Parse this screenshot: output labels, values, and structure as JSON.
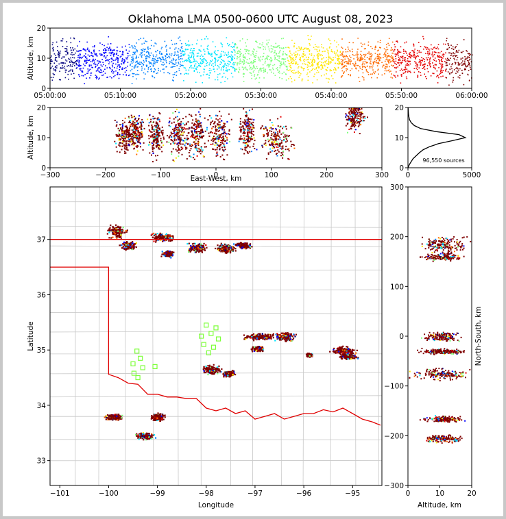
{
  "chart_data": {
    "type": "scatter",
    "title": "Oklahoma LMA 0500-0600 UTC August 08, 2023",
    "color_scale": [
      "#00007f",
      "#0000ff",
      "#0080ff",
      "#00e5ff",
      "#7dff7a",
      "#ffe600",
      "#ff6a00",
      "#e50000",
      "#7f0000"
    ],
    "panels": {
      "time_altitude": {
        "ylabel": "Altitude, km",
        "ylim": [
          0,
          20
        ],
        "yticks": [
          "0",
          "10",
          "20"
        ],
        "xticks": [
          "05:00:00",
          "05:10:00",
          "05:20:00",
          "05:30:00",
          "05:40:00",
          "05:50:00",
          "06:00:00"
        ]
      },
      "eastwest_altitude": {
        "ylabel": "Altitude, km",
        "xlabel": "East-West, km",
        "xlim": [
          -300,
          300
        ],
        "ylim": [
          0,
          20
        ],
        "xticks": [
          "−300",
          "−200",
          "−100",
          "0",
          "100",
          "200",
          "300"
        ],
        "yticks": [
          "0",
          "10",
          "20"
        ],
        "clusters": [
          {
            "x": -165,
            "alt": 11,
            "w": 22,
            "h": 4
          },
          {
            "x": -145,
            "alt": 12,
            "w": 20,
            "h": 4
          },
          {
            "x": -110,
            "alt": 11,
            "w": 18,
            "h": 5
          },
          {
            "x": -70,
            "alt": 11,
            "w": 22,
            "h": 5
          },
          {
            "x": -35,
            "alt": 11,
            "w": 25,
            "h": 5
          },
          {
            "x": 5,
            "alt": 11,
            "w": 30,
            "h": 5
          },
          {
            "x": 55,
            "alt": 12,
            "w": 20,
            "h": 5
          },
          {
            "x": 110,
            "alt": 10,
            "w": 40,
            "h": 4
          },
          {
            "x": 250,
            "alt": 17,
            "w": 25,
            "h": 3
          }
        ]
      },
      "altitude_histogram": {
        "annotation": "96,550 sources",
        "xticks": [
          "0",
          "5000"
        ],
        "yticks": [
          "0",
          "10",
          "20"
        ],
        "xlim": [
          0,
          5000
        ],
        "ylim": [
          0,
          20
        ],
        "profile": [
          [
            0,
            0
          ],
          [
            100,
            1
          ],
          [
            250,
            2
          ],
          [
            400,
            3
          ],
          [
            650,
            4
          ],
          [
            900,
            5
          ],
          [
            1200,
            6
          ],
          [
            1700,
            7
          ],
          [
            2400,
            8
          ],
          [
            3500,
            9
          ],
          [
            4500,
            10
          ],
          [
            4000,
            11
          ],
          [
            2200,
            12
          ],
          [
            1000,
            13
          ],
          [
            500,
            14
          ],
          [
            250,
            15
          ],
          [
            120,
            16
          ],
          [
            70,
            17
          ],
          [
            40,
            18
          ],
          [
            20,
            19
          ],
          [
            10,
            20
          ]
        ]
      },
      "map": {
        "xlabel": "Longitude",
        "ylabel": "Latitude",
        "xlim": [
          -101.2,
          -94.4
        ],
        "ylim": [
          32.55,
          37.95
        ],
        "xticks": [
          "−101",
          "−100",
          "−99",
          "−98",
          "−97",
          "−96",
          "−95"
        ],
        "yticks": [
          "33",
          "34",
          "35",
          "36",
          "37"
        ],
        "clusters": [
          {
            "lon": -99.85,
            "lat": 37.15,
            "rx": 0.25,
            "ry": 0.15
          },
          {
            "lon": -99.6,
            "lat": 36.9,
            "rx": 0.2,
            "ry": 0.1
          },
          {
            "lon": -98.9,
            "lat": 37.05,
            "rx": 0.3,
            "ry": 0.1
          },
          {
            "lon": -98.8,
            "lat": 36.75,
            "rx": 0.15,
            "ry": 0.07
          },
          {
            "lon": -98.2,
            "lat": 36.85,
            "rx": 0.25,
            "ry": 0.12
          },
          {
            "lon": -97.6,
            "lat": 36.85,
            "rx": 0.25,
            "ry": 0.1
          },
          {
            "lon": -97.25,
            "lat": 36.9,
            "rx": 0.2,
            "ry": 0.07
          },
          {
            "lon": -96.9,
            "lat": 35.25,
            "rx": 0.4,
            "ry": 0.07
          },
          {
            "lon": -96.4,
            "lat": 35.25,
            "rx": 0.25,
            "ry": 0.1
          },
          {
            "lon": -96.95,
            "lat": 35.03,
            "rx": 0.15,
            "ry": 0.06
          },
          {
            "lon": -95.2,
            "lat": 35.0,
            "rx": 0.3,
            "ry": 0.1
          },
          {
            "lon": -95.1,
            "lat": 34.9,
            "rx": 0.25,
            "ry": 0.07
          },
          {
            "lon": -97.9,
            "lat": 34.65,
            "rx": 0.25,
            "ry": 0.1
          },
          {
            "lon": -97.55,
            "lat": 34.58,
            "rx": 0.18,
            "ry": 0.07
          },
          {
            "lon": -99.9,
            "lat": 33.8,
            "rx": 0.22,
            "ry": 0.07
          },
          {
            "lon": -99.0,
            "lat": 33.8,
            "rx": 0.18,
            "ry": 0.09
          },
          {
            "lon": -99.25,
            "lat": 33.45,
            "rx": 0.25,
            "ry": 0.08
          },
          {
            "lon": -95.9,
            "lat": 34.92,
            "rx": 0.08,
            "ry": 0.04
          }
        ],
        "stations": [
          [
            -99.42,
            34.98
          ],
          [
            -99.35,
            34.85
          ],
          [
            -99.5,
            34.75
          ],
          [
            -99.3,
            34.68
          ],
          [
            -99.48,
            34.58
          ],
          [
            -99.4,
            34.5
          ],
          [
            -99.05,
            34.7
          ],
          [
            -98.0,
            35.45
          ],
          [
            -97.8,
            35.4
          ],
          [
            -98.1,
            35.25
          ],
          [
            -97.9,
            35.3
          ],
          [
            -97.75,
            35.2
          ],
          [
            -98.05,
            35.1
          ],
          [
            -97.85,
            35.05
          ],
          [
            -97.95,
            34.95
          ]
        ],
        "ok_border": [
          [
            -103.0,
            36.5
          ],
          [
            -100.0,
            36.5
          ],
          [
            -100.0,
            34.56
          ],
          [
            -99.8,
            34.5
          ],
          [
            -99.6,
            34.4
          ],
          [
            -99.4,
            34.38
          ],
          [
            -99.2,
            34.2
          ],
          [
            -99.0,
            34.2
          ],
          [
            -98.8,
            34.15
          ],
          [
            -98.6,
            34.15
          ],
          [
            -98.4,
            34.12
          ],
          [
            -98.2,
            34.12
          ],
          [
            -98.0,
            33.95
          ],
          [
            -97.8,
            33.9
          ],
          [
            -97.6,
            33.95
          ],
          [
            -97.4,
            33.85
          ],
          [
            -97.2,
            33.9
          ],
          [
            -97.0,
            33.75
          ],
          [
            -96.8,
            33.8
          ],
          [
            -96.6,
            33.85
          ],
          [
            -96.4,
            33.75
          ],
          [
            -96.2,
            33.8
          ],
          [
            -96.0,
            33.85
          ],
          [
            -95.8,
            33.85
          ],
          [
            -95.6,
            33.92
          ],
          [
            -95.4,
            33.88
          ],
          [
            -95.2,
            33.95
          ],
          [
            -95.0,
            33.85
          ],
          [
            -94.8,
            33.75
          ],
          [
            -94.6,
            33.7
          ],
          [
            -94.43,
            33.64
          ]
        ],
        "ks_border": [
          [
            -101.2,
            37.0
          ],
          [
            -94.4,
            37.0
          ]
        ]
      },
      "northsouth_altitude": {
        "xlabel": "Altitude, km",
        "ylabel": "North-South, km",
        "xlim": [
          0,
          20
        ],
        "ylim": [
          -300,
          300
        ],
        "xticks": [
          "0",
          "10",
          "20"
        ],
        "yticks": [
          "−300",
          "−200",
          "−100",
          "0",
          "100",
          "200",
          "300"
        ],
        "clusters": [
          {
            "alt": 11,
            "y": 185,
            "w": 6,
            "h": 25
          },
          {
            "alt": 11,
            "y": 160,
            "w": 5,
            "h": 10
          },
          {
            "alt": 10,
            "y": 0,
            "w": 5,
            "h": 12
          },
          {
            "alt": 11,
            "y": -30,
            "w": 6,
            "h": 8
          },
          {
            "alt": 10,
            "y": -75,
            "w": 7,
            "h": 15
          },
          {
            "alt": 11,
            "y": -165,
            "w": 5,
            "h": 8
          },
          {
            "alt": 11,
            "y": -205,
            "w": 5,
            "h": 10
          }
        ]
      }
    }
  }
}
